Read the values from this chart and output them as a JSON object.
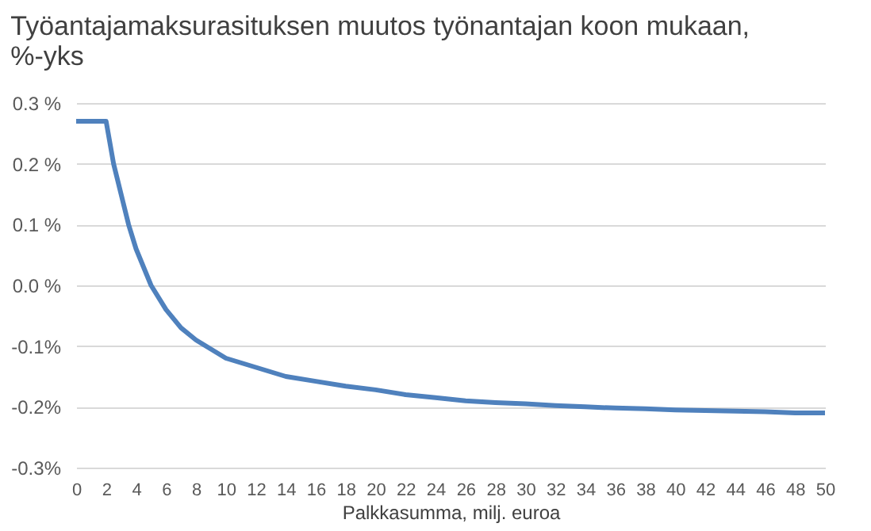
{
  "chart_data": {
    "type": "line",
    "title": "Työantajamaksurasituksen muutos työnantajan koon mukaan, %-yks",
    "xlabel": "Palkkasumma, milj. euroa",
    "x": [
      0,
      1,
      2,
      2.5,
      3,
      3.5,
      4,
      4.5,
      5,
      6,
      7,
      8,
      9,
      10,
      12,
      14,
      16,
      18,
      20,
      22,
      24,
      26,
      28,
      30,
      32,
      34,
      36,
      38,
      40,
      42,
      44,
      46,
      48,
      50
    ],
    "series": [
      {
        "color": "#4f81bd",
        "values": [
          0.27,
          0.27,
          0.27,
          0.2,
          0.15,
          0.1,
          0.06,
          0.03,
          0.0,
          -0.04,
          -0.07,
          -0.09,
          -0.105,
          -0.12,
          -0.135,
          -0.15,
          -0.158,
          -0.166,
          -0.172,
          -0.18,
          -0.185,
          -0.19,
          -0.193,
          -0.195,
          -0.198,
          -0.2,
          -0.202,
          -0.203,
          -0.205,
          -0.206,
          -0.207,
          -0.208,
          -0.21,
          -0.21
        ]
      }
    ],
    "xlim": [
      0,
      50
    ],
    "xticks": [
      0,
      2,
      4,
      6,
      8,
      10,
      12,
      14,
      16,
      18,
      20,
      22,
      24,
      26,
      28,
      30,
      32,
      34,
      36,
      38,
      40,
      42,
      44,
      46,
      48,
      50
    ],
    "ylim": [
      -0.3,
      0.3
    ],
    "yticks": [
      {
        "value": -0.3,
        "label": "-0.3%"
      },
      {
        "value": -0.2,
        "label": "-0.2%"
      },
      {
        "value": -0.1,
        "label": "-0.1%"
      },
      {
        "value": 0,
        "label": "0.0 %"
      },
      {
        "value": 0.1,
        "label": "0.1 %"
      },
      {
        "value": 0.2,
        "label": "0.2 %"
      },
      {
        "value": 0.3,
        "label": "0.3 %"
      }
    ],
    "grid": "y",
    "legend": false,
    "marker": "none",
    "line_style": "solid"
  }
}
